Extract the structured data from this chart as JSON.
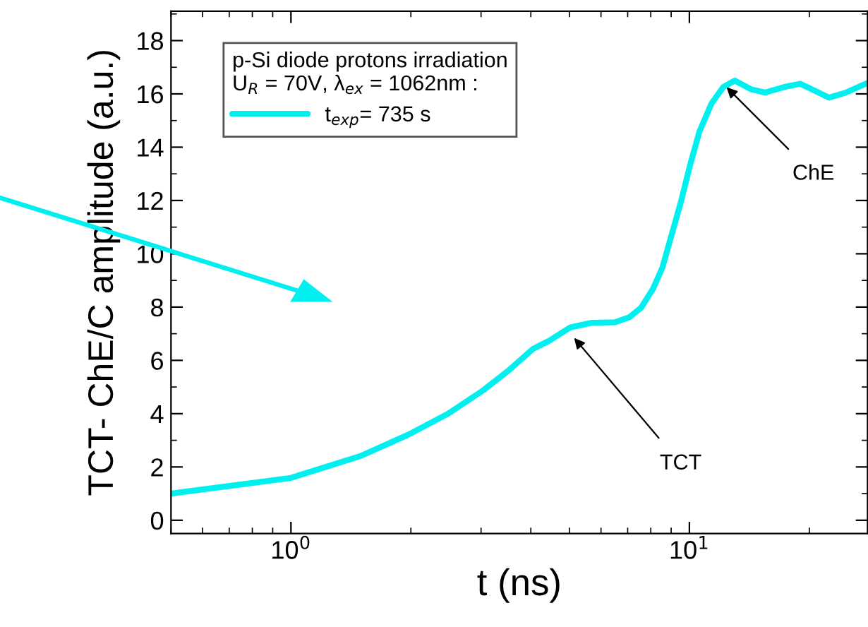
{
  "chart_data": {
    "type": "line",
    "xlabel": "t (ns)",
    "ylabel": "TCT- ChE/C amplitude (a.u.)",
    "legend_title": "p-Si diode protons irradiation\nU$_{R}$ = 70V, λ$_{ex}$ = 1062nm :",
    "log": "x",
    "xlim": [
      0.5,
      28
    ],
    "ylim": [
      -0.5,
      19.1
    ],
    "xticks": [
      {
        "value": 1,
        "label": "10$^{0}$"
      },
      {
        "value": 10,
        "label": "10$^{1}$"
      }
    ],
    "yticks": [
      0,
      2,
      4,
      6,
      8,
      10,
      12,
      14,
      16,
      18
    ],
    "grid": false,
    "legend": "top left",
    "marker": "none",
    "line_style": "solid",
    "series": [
      {
        "name": "t$_{exp}$= 735 s",
        "color": "#00f0f0",
        "x": [
          0.5,
          1.0,
          1.5,
          1.97,
          2.48,
          3.04,
          3.53,
          4.05,
          4.45,
          5.03,
          5.69,
          6.51,
          7.07,
          7.56,
          8.1,
          8.55,
          9.02,
          9.52,
          10.05,
          10.6,
          11.36,
          12.17,
          13.0,
          14.3,
          15.5,
          17.3,
          19.0,
          20.9,
          22.4,
          24.6,
          27.9
        ],
        "values": [
          1.0,
          1.59,
          2.42,
          3.21,
          4.0,
          4.88,
          5.64,
          6.43,
          6.74,
          7.24,
          7.41,
          7.43,
          7.62,
          7.97,
          8.68,
          9.47,
          10.7,
          11.94,
          13.35,
          14.59,
          15.64,
          16.26,
          16.5,
          16.17,
          16.05,
          16.26,
          16.38,
          16.08,
          15.86,
          16.04,
          16.4
        ]
      }
    ],
    "annotations": [
      {
        "text": "TCT",
        "x": 5.1,
        "y": 6.9
      },
      {
        "text": "ChE",
        "x": 12.3,
        "y": 16.3
      }
    ]
  }
}
